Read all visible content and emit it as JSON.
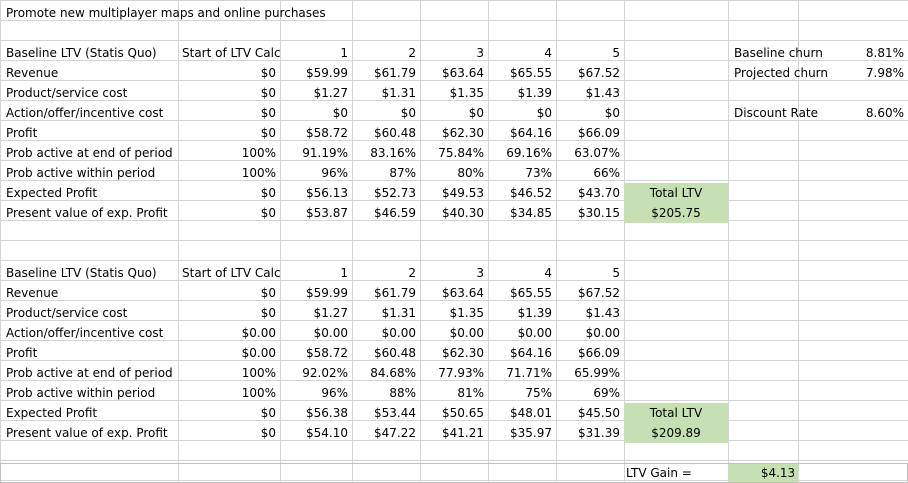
{
  "title": "Promote new multiplayer maps and online purchases",
  "side": {
    "baseline_churn_label": "Baseline churn",
    "baseline_churn_value": "8.81%",
    "projected_churn_label": "Projected churn",
    "projected_churn_value": "7.98%",
    "discount_rate_label": "Discount Rate",
    "discount_rate_value": "8.60%"
  },
  "table1": {
    "header": [
      "Baseline LTV (Statis Quo)",
      "Start of LTV Calc",
      "1",
      "2",
      "3",
      "4",
      "5"
    ],
    "rows": [
      [
        "Revenue",
        "$0",
        "$59.99",
        "$61.79",
        "$63.64",
        "$65.55",
        "$67.52"
      ],
      [
        "Product/service cost",
        "$0",
        "$1.27",
        "$1.31",
        "$1.35",
        "$1.39",
        "$1.43"
      ],
      [
        "Action/offer/incentive cost",
        "$0",
        "$0",
        "$0",
        "$0",
        "$0",
        "$0"
      ],
      [
        "Profit",
        "$0",
        "$58.72",
        "$60.48",
        "$62.30",
        "$64.16",
        "$66.09"
      ],
      [
        "Prob active at end of period",
        "100%",
        "91.19%",
        "83.16%",
        "75.84%",
        "69.16%",
        "63.07%"
      ],
      [
        "Prob active within period",
        "100%",
        "96%",
        "87%",
        "80%",
        "73%",
        "66%"
      ],
      [
        "Expected Profit",
        "$0",
        "$56.13",
        "$52.73",
        "$49.53",
        "$46.52",
        "$43.70"
      ],
      [
        "Present value of exp. Profit",
        "$0",
        "$53.87",
        "$46.59",
        "$40.30",
        "$34.85",
        "$30.15"
      ]
    ],
    "total_label": "Total LTV",
    "total_value": "$205.75"
  },
  "table2": {
    "header": [
      "Baseline LTV (Statis Quo)",
      "Start of LTV Calc",
      "1",
      "2",
      "3",
      "4",
      "5"
    ],
    "rows": [
      [
        "Revenue",
        "$0",
        "$59.99",
        "$61.79",
        "$63.64",
        "$65.55",
        "$67.52"
      ],
      [
        "Product/service cost",
        "$0",
        "$1.27",
        "$1.31",
        "$1.35",
        "$1.39",
        "$1.43"
      ],
      [
        "Action/offer/incentive cost",
        "$0.00",
        "$0.00",
        "$0.00",
        "$0.00",
        "$0.00",
        "$0.00"
      ],
      [
        "Profit",
        "$0.00",
        "$58.72",
        "$60.48",
        "$62.30",
        "$64.16",
        "$66.09"
      ],
      [
        "Prob active at end of period",
        "100%",
        "92.02%",
        "84.68%",
        "77.93%",
        "71.71%",
        "65.99%"
      ],
      [
        "Prob active within period",
        "100%",
        "96%",
        "88%",
        "81%",
        "75%",
        "69%"
      ],
      [
        "Expected Profit",
        "$0",
        "$56.38",
        "$53.44",
        "$50.65",
        "$48.01",
        "$45.50"
      ],
      [
        "Present value of exp. Profit",
        "$0",
        "$54.10",
        "$47.22",
        "$41.21",
        "$35.97",
        "$31.39"
      ]
    ],
    "total_label": "Total LTV",
    "total_value": "$209.89"
  },
  "gain": {
    "label": "LTV Gain =",
    "value": "$4.13"
  },
  "colors": {
    "total_fill": "#c6e0b4",
    "gridline": "#d4d4d4"
  }
}
